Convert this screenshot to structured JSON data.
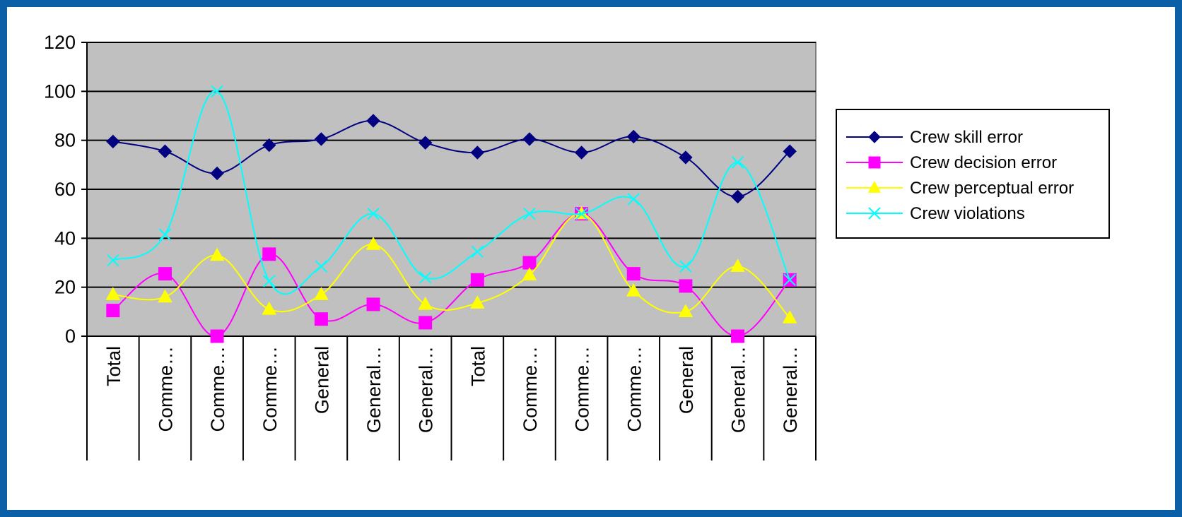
{
  "chart_data": {
    "type": "line",
    "title": "",
    "xlabel": "",
    "ylabel": "",
    "ylim": [
      0,
      120
    ],
    "yticks": [
      0,
      20,
      40,
      60,
      80,
      100,
      120
    ],
    "grid": true,
    "smooth": true,
    "plot_background": "#c0c0c0",
    "legend_position": "right",
    "categories": [
      "Total",
      "Comme…",
      "Comme…",
      "Comme…",
      "General",
      "General…",
      "General…",
      "Total",
      "Comme…",
      "Comme…",
      "Comme…",
      "General",
      "General…",
      "General…"
    ],
    "series": [
      {
        "name": "Crew skill error",
        "color": "#000080",
        "marker": "diamond",
        "values": [
          79.5,
          75.5,
          66.5,
          78,
          80.5,
          88,
          79,
          75,
          80.5,
          75,
          81.5,
          73,
          57,
          75.5
        ]
      },
      {
        "name": "Crew decision error",
        "color": "#ff00ff",
        "marker": "square",
        "values": [
          10.5,
          25.5,
          0,
          33.5,
          7,
          13,
          5.5,
          23,
          30,
          50,
          25.5,
          20.5,
          0,
          23
        ]
      },
      {
        "name": "Crew perceptual error",
        "color": "#ffff00",
        "marker": "triangle",
        "values": [
          17,
          16,
          33,
          11,
          17,
          37.5,
          13,
          13.5,
          25,
          50,
          18.5,
          10,
          28.5,
          7.5
        ]
      },
      {
        "name": "Crew violations",
        "color": "#00ffff",
        "marker": "x",
        "values": [
          31,
          41.5,
          100,
          22.5,
          28.5,
          50,
          24,
          34.5,
          50,
          50,
          56,
          28.5,
          71,
          23
        ]
      }
    ]
  }
}
